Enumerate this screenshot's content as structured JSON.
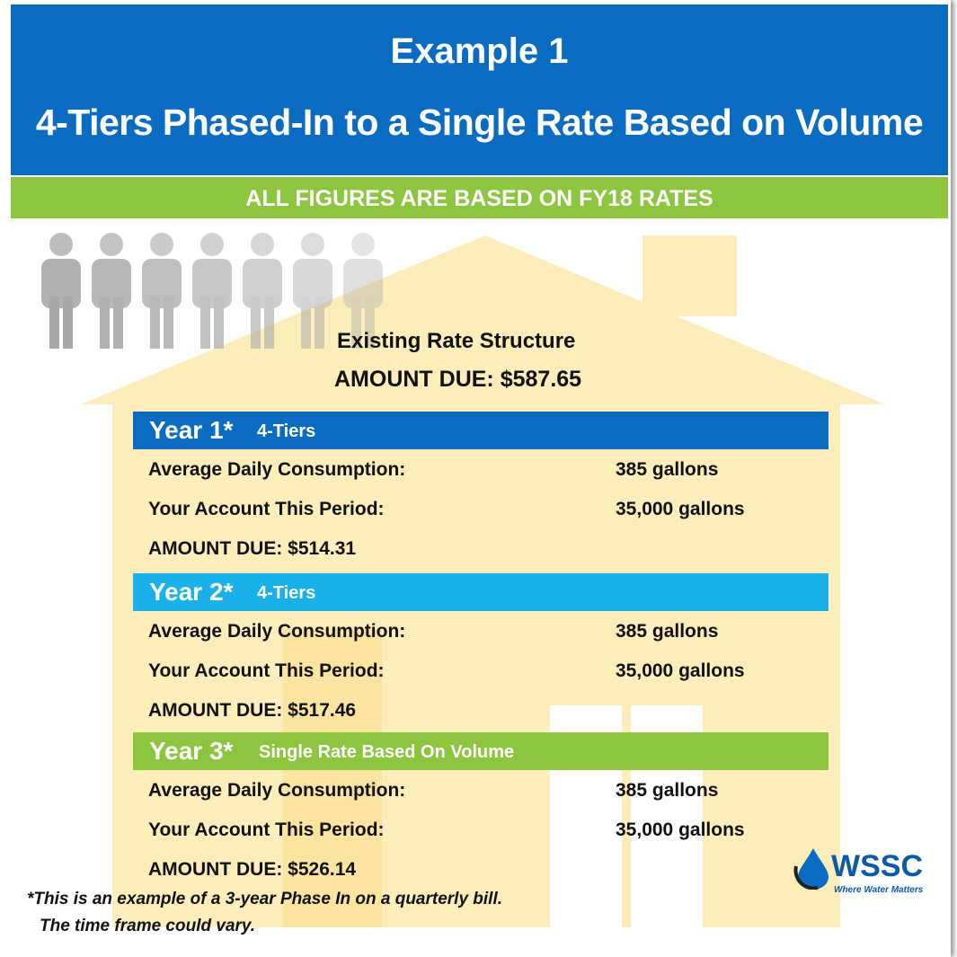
{
  "header": {
    "title": "Example 1",
    "subtitle": "4-Tiers Phased-In to a Single Rate Based on Volume"
  },
  "banner": "ALL FIGURES ARE BASED ON FY18 RATES",
  "existing": {
    "heading": "Existing Rate Structure",
    "amount_due": "AMOUNT DUE:  $587.65"
  },
  "years": [
    {
      "label": "Year 1*",
      "plan": "4-Tiers",
      "rows": [
        [
          "Average Daily Consumption:",
          "385 gallons"
        ],
        [
          "Your Account This Period:",
          "35,000 gallons"
        ]
      ],
      "amount_due": "AMOUNT DUE: $514.31"
    },
    {
      "label": "Year 2*",
      "plan": "4-Tiers",
      "rows": [
        [
          "Average Daily Consumption:",
          "385 gallons"
        ],
        [
          "Your Account This Period:",
          "35,000 gallons"
        ]
      ],
      "amount_due": "AMOUNT DUE: $517.46"
    },
    {
      "label": "Year 3*",
      "plan": "Single Rate Based On Volume",
      "rows": [
        [
          "Average Daily Consumption:",
          "385 gallons"
        ],
        [
          "Your Account This Period:",
          "35,000 gallons"
        ]
      ],
      "amount_due": "AMOUNT DUE: $526.14"
    }
  ],
  "footnote": [
    "*This is an example of a 3-year Phase In on a quarterly bill.",
    "The time frame could vary."
  ],
  "logo": {
    "name": "WSSC",
    "tagline": "Where Water Matters"
  }
}
